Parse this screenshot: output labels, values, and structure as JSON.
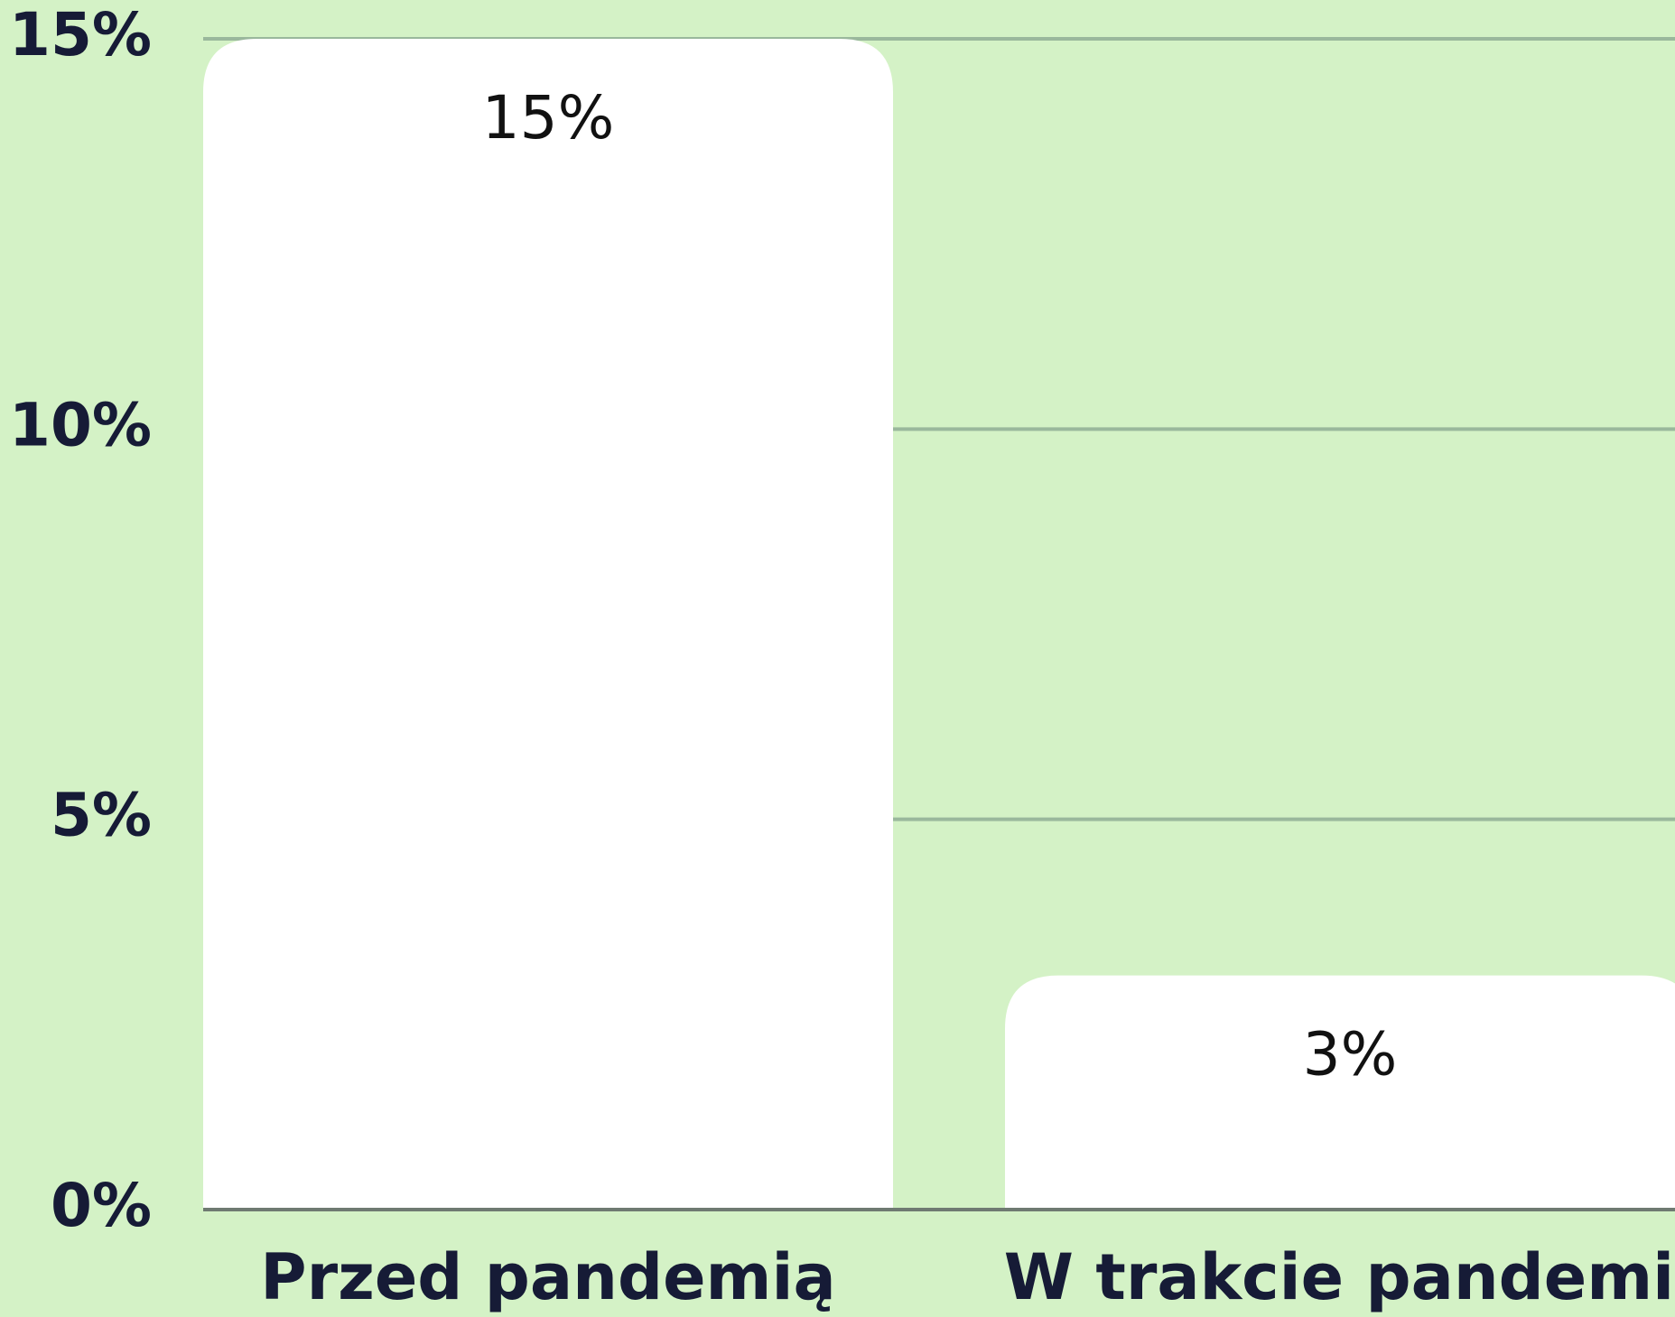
{
  "chart_data": {
    "type": "bar",
    "categories": [
      "Przed pandemią",
      "W trakcie pandemii"
    ],
    "values": [
      15,
      3
    ],
    "value_labels": [
      "15%",
      "3%"
    ],
    "color": "#ffffff",
    "ylim": [
      0,
      15
    ],
    "yticks": [
      {
        "value": 0,
        "label": "0%"
      },
      {
        "value": 5,
        "label": "5%"
      },
      {
        "value": 10,
        "label": "10%"
      },
      {
        "value": 15,
        "label": "15%"
      }
    ],
    "grid": true
  }
}
